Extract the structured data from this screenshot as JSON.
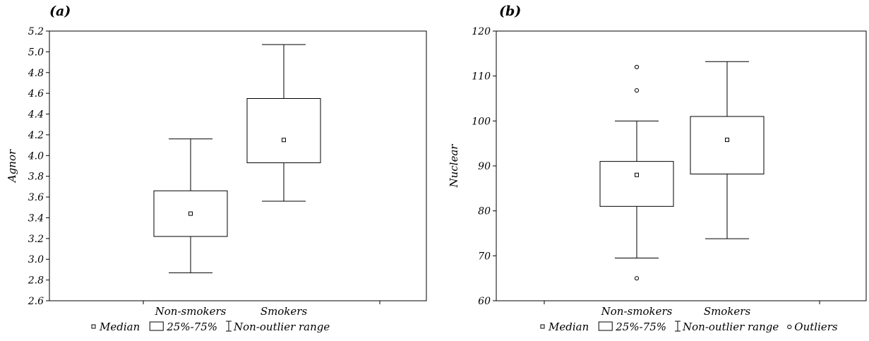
{
  "chart_data": [
    {
      "type": "box",
      "panel_label": "(a)",
      "ylabel": "Agnor",
      "ylim": [
        2.6,
        5.2
      ],
      "yticks": [
        "2.6",
        "2.8",
        "3.0",
        "3.2",
        "3.4",
        "3.6",
        "3.8",
        "4.0",
        "4.2",
        "4.4",
        "4.6",
        "4.8",
        "5.0",
        "5.2"
      ],
      "categories": [
        "Non-smokers",
        "Smokers"
      ],
      "boxes": [
        {
          "whisker_low": 2.87,
          "q1": 3.22,
          "median": 3.44,
          "q3": 3.66,
          "whisker_high": 4.16,
          "outliers": []
        },
        {
          "whisker_low": 3.56,
          "q1": 3.93,
          "median": 4.15,
          "q3": 4.55,
          "whisker_high": 5.07,
          "outliers": []
        }
      ],
      "legend": [
        "Median",
        "25%-75%",
        "Non-outlier range"
      ]
    },
    {
      "type": "box",
      "panel_label": "(b)",
      "ylabel": "Nuclear",
      "ylim": [
        60,
        120
      ],
      "yticks": [
        "60",
        "70",
        "80",
        "90",
        "100",
        "110",
        "120"
      ],
      "categories": [
        "Non-smokers",
        "Smokers"
      ],
      "boxes": [
        {
          "whisker_low": 69.5,
          "q1": 81,
          "median": 88,
          "q3": 91,
          "whisker_high": 100,
          "outliers": [
            65,
            106.8,
            112
          ]
        },
        {
          "whisker_low": 73.8,
          "q1": 88.2,
          "median": 95.8,
          "q3": 101,
          "whisker_high": 113.2,
          "outliers": []
        }
      ],
      "legend": [
        "Median",
        "25%-75%",
        "Non-outlier range",
        "Outliers"
      ]
    }
  ]
}
